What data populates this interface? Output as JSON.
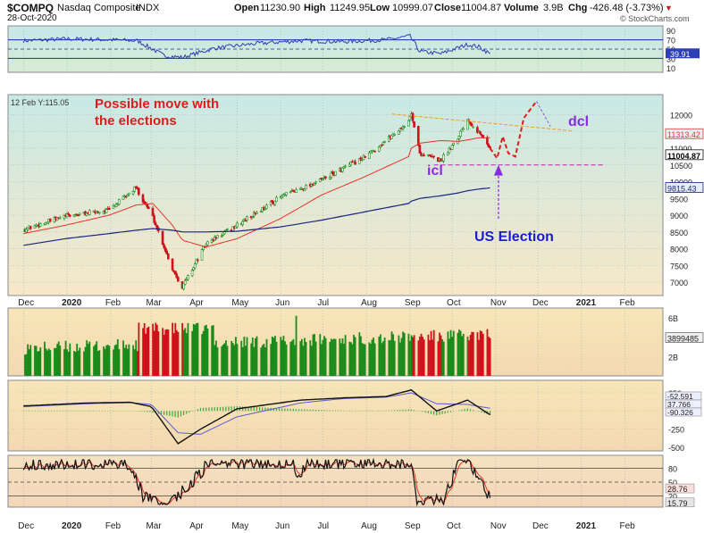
{
  "header": {
    "symbol": "$COMPQ",
    "name": "Nasdaq Composite",
    "exchange": "INDX",
    "date": "28-Oct-2020",
    "open_label": "Open",
    "open": "11230.90",
    "high_label": "High",
    "high": "11249.95",
    "low_label": "Low",
    "low": "10999.07",
    "close_label": "Close",
    "close": "11004.87",
    "volume_label": "Volume",
    "volume": "3.9B",
    "chg_label": "Chg",
    "chg": "-426.48 (-3.73%)",
    "chg_arrow": "▼",
    "watermark": "© StockCharts.com",
    "hover_readout": "12 Feb Y:115.05"
  },
  "annotations": {
    "possible_move_line1": "Possible move with",
    "possible_move_line2": "the elections",
    "icl": "icl",
    "dcl": "dcl",
    "us_election": "US Election"
  },
  "colors": {
    "up": "#1a8a1a",
    "down": "#d0111b",
    "ma_short": "#e8322a",
    "ma_long": "#1a237e",
    "rsi": "#2c3fb5",
    "annotation_red": "#e01b1b",
    "annotation_purple": "#8a2be2",
    "annotation_blue": "#1c1cd0",
    "trendline": "#f59a1c"
  },
  "chart_data": [
    {
      "type": "line",
      "panel": "rsi",
      "y_ticks": [
        "90",
        "70",
        "50",
        "30",
        "10"
      ],
      "ylim": [
        0,
        100
      ],
      "x": [
        "2019-12-01",
        "2020-01-01",
        "2020-02-01",
        "2020-02-20",
        "2020-03-10",
        "2020-03-23",
        "2020-04-15",
        "2020-05-15",
        "2020-06-15",
        "2020-07-15",
        "2020-08-15",
        "2020-09-01",
        "2020-09-08",
        "2020-09-23",
        "2020-10-12",
        "2020-10-20",
        "2020-10-28"
      ],
      "values": [
        68,
        72,
        70,
        68,
        36,
        32,
        52,
        62,
        68,
        66,
        70,
        78,
        45,
        40,
        60,
        55,
        39.91
      ],
      "last_value_label": "39.91"
    },
    {
      "type": "line",
      "panel": "price",
      "y_ticks": [
        "12000",
        "11500",
        "11000",
        "10500",
        "10000",
        "9500",
        "9000",
        "8500",
        "8000",
        "7500",
        "7000"
      ],
      "ylim": [
        6600,
        12600
      ],
      "x_ticks": [
        "Dec",
        "2020",
        "Feb",
        "Mar",
        "Apr",
        "May",
        "Jun",
        "Jul",
        "Aug",
        "Sep",
        "Oct",
        "Nov",
        "Dec",
        "2021",
        "Feb"
      ],
      "price_x": [
        "2019-12-01",
        "2019-12-31",
        "2020-01-31",
        "2020-02-19",
        "2020-03-02",
        "2020-03-16",
        "2020-03-23",
        "2020-04-09",
        "2020-05-01",
        "2020-06-01",
        "2020-06-30",
        "2020-07-31",
        "2020-08-31",
        "2020-09-02",
        "2020-09-08",
        "2020-09-23",
        "2020-10-05",
        "2020-10-12",
        "2020-10-20",
        "2020-10-28"
      ],
      "price": [
        8570,
        8970,
        9150,
        9820,
        8950,
        7400,
        6860,
        8150,
        8700,
        9550,
        10050,
        10740,
        11780,
        12056,
        10850,
        10630,
        11330,
        11880,
        11480,
        11004.87
      ],
      "ma50": [
        8450,
        8700,
        9000,
        9300,
        9350,
        8700,
        8250,
        8050,
        8300,
        8900,
        9600,
        10150,
        10750,
        11000,
        11150,
        11230,
        11200,
        11250,
        11310,
        11313.42
      ],
      "ma200": [
        8100,
        8300,
        8450,
        8550,
        8600,
        8550,
        8500,
        8500,
        8520,
        8650,
        8850,
        9100,
        9350,
        9420,
        9500,
        9580,
        9660,
        9730,
        9780,
        9815.43
      ],
      "last_value_labels": [
        "11313.42",
        "11004.87",
        "9815.43"
      ]
    },
    {
      "type": "bar",
      "panel": "volume",
      "y_ticks": [
        "6B",
        "4B",
        "2B"
      ],
      "last_value_label": "3899485"
    },
    {
      "type": "line",
      "panel": "macd",
      "y_ticks": [
        "250",
        "0",
        "-250",
        "-500"
      ],
      "last_value_labels": [
        "-52.591",
        "37.766",
        "-90.326"
      ]
    },
    {
      "type": "line",
      "panel": "stochastic",
      "y_ticks": [
        "80",
        "50",
        "20"
      ],
      "last_value_labels": [
        "28.76",
        "15.79"
      ]
    }
  ]
}
